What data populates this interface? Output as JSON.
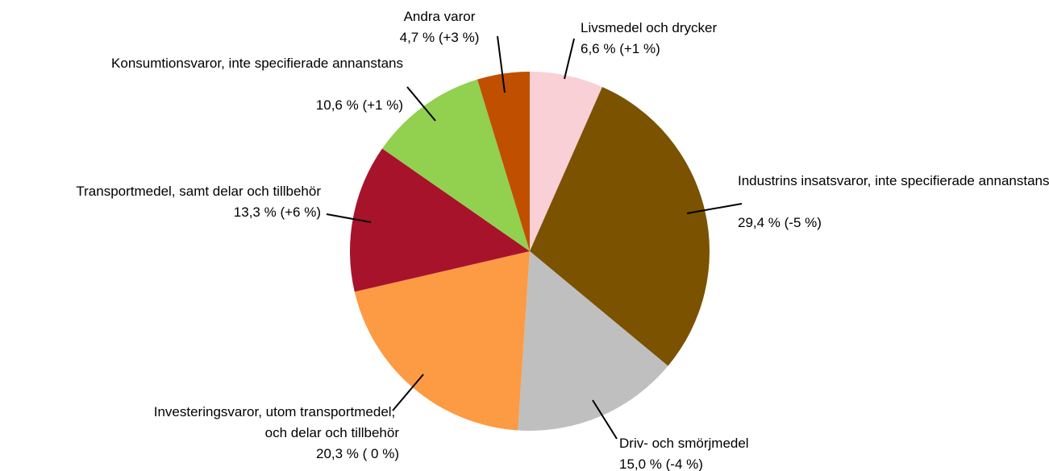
{
  "chart_data": {
    "type": "pie",
    "categories": [
      "Livsmedel och drycker",
      "Industrins insatsvaror, inte specifierade annanstans",
      "Driv- och smörjmedel",
      "Investeringsvaror, utom transportmedel, och delar och tillbehör",
      "Transportmedel, samt delar och tillbehör",
      "Konsumtionsvaror, inte specifierade annanstans",
      "Andra varor"
    ],
    "values": [
      6.6,
      29.4,
      15.0,
      20.3,
      13.3,
      10.6,
      4.7
    ],
    "value_labels": [
      "6,6 % (+1 %)",
      "29,4 % (-5 %)",
      "15,0 % (-4 %)",
      "20,3 % ( 0 %)",
      "13,3 % (+6 %)",
      "10,6 % (+1 %)",
      "4,7 % (+3 %)"
    ],
    "colors": [
      "#f9d0d6",
      "#7a5200",
      "#bfbfbf",
      "#fd9a44",
      "#a8132c",
      "#92d050",
      "#c05000"
    ]
  }
}
